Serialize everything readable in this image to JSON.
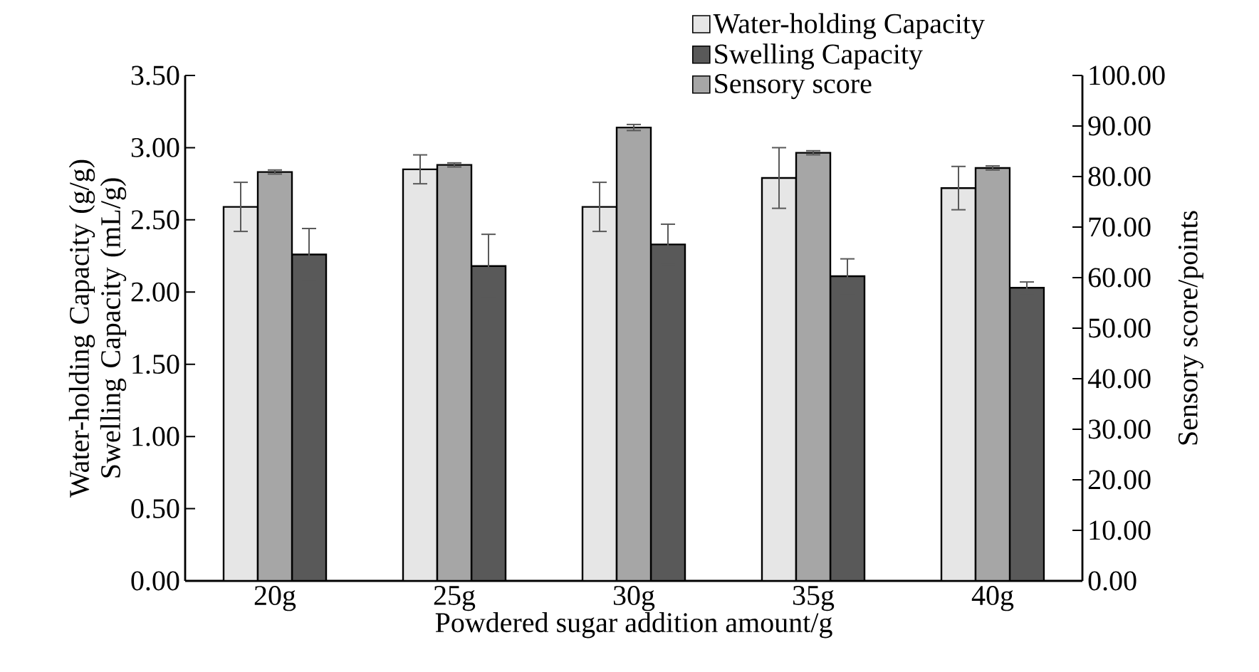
{
  "chart_data": {
    "type": "bar",
    "xlabel": "Powdered sugar addition amount/g",
    "ylabel": "Water-holding Capacity (g/g) Swelling Capacity (mL/g)",
    "y2label": "Sensory score/points",
    "categories": [
      "20g",
      "25g",
      "30g",
      "35g",
      "40g"
    ],
    "series": [
      {
        "name": "Water-holding Capacity",
        "color": "#e6e6e6",
        "values": [
          2.59,
          2.85,
          2.59,
          2.79,
          2.72
        ],
        "errors": [
          0.17,
          0.1,
          0.17,
          0.21,
          0.15
        ]
      },
      {
        "name": "Swelling Capacity",
        "color": "#595959",
        "values": [
          2.26,
          2.18,
          2.33,
          2.11,
          2.03
        ],
        "errors": [
          0.18,
          0.22,
          0.14,
          0.12,
          0.04
        ]
      },
      {
        "name": "Sensory score",
        "color": "#a6a6a6",
        "axis": "y2",
        "values": [
          80.9,
          82.3,
          89.7,
          84.7,
          81.7
        ],
        "errors": [
          0.4,
          0.4,
          0.6,
          0.4,
          0.4
        ]
      }
    ],
    "ylim": [
      0,
      3.5
    ],
    "yticks": [
      {
        "value": 0,
        "label": "0.00"
      },
      {
        "value": 0.5,
        "label": "0.50"
      },
      {
        "value": 1,
        "label": "1.00"
      },
      {
        "value": 1.5,
        "label": "1.50"
      },
      {
        "value": 2,
        "label": "2.00"
      },
      {
        "value": 2.5,
        "label": "2.50"
      },
      {
        "value": 3,
        "label": "3.00"
      },
      {
        "value": 3.5,
        "label": "3.50"
      }
    ],
    "y2lim": [
      0,
      100
    ],
    "y2ticks": [
      {
        "value": 0,
        "label": "0.00"
      },
      {
        "value": 10,
        "label": "10.00"
      },
      {
        "value": 20,
        "label": "20.00"
      },
      {
        "value": 30,
        "label": "30.00"
      },
      {
        "value": 40,
        "label": "40.00"
      },
      {
        "value": 50,
        "label": "50.00"
      },
      {
        "value": 60,
        "label": "60.00"
      },
      {
        "value": 70,
        "label": "70.00"
      },
      {
        "value": 80,
        "label": "80.00"
      },
      {
        "value": 90,
        "label": "90.00"
      },
      {
        "value": 100,
        "label": "100.00"
      }
    ],
    "legend": "top",
    "grid": false
  }
}
